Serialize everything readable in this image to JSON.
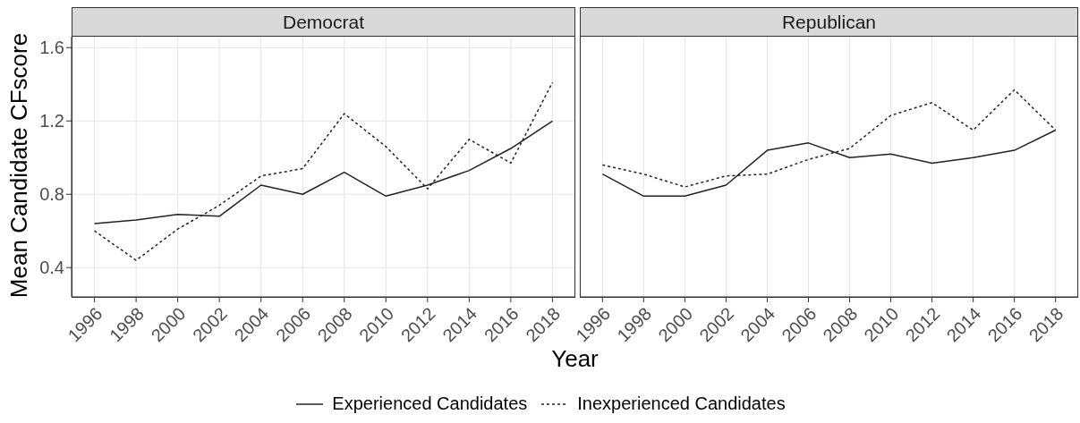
{
  "chart_data": [
    {
      "type": "line",
      "title": "Democrat",
      "xlabel": "Year",
      "ylabel": "Mean Candidate CFscore",
      "x": [
        1996,
        1998,
        2000,
        2002,
        2004,
        2006,
        2008,
        2010,
        2012,
        2014,
        2016,
        2018
      ],
      "xlim": [
        1994.9,
        2019.1
      ],
      "xticks": [
        1996,
        1998,
        2000,
        2002,
        2004,
        2006,
        2008,
        2010,
        2012,
        2014,
        2016,
        2018
      ],
      "ylim": [
        0.24,
        1.66
      ],
      "yticks": [
        0.4,
        0.8,
        1.2,
        1.6
      ],
      "grid": true,
      "legend": "bottom",
      "marker": "none",
      "series": [
        {
          "name": "Experienced Candidates",
          "color": "#222222",
          "line_style": "solid",
          "values": [
            0.64,
            0.66,
            0.69,
            0.68,
            0.85,
            0.8,
            0.92,
            0.79,
            0.85,
            0.93,
            1.05,
            1.2
          ]
        },
        {
          "name": "Inexperienced Candidates",
          "color": "#222222",
          "line_style": "dotted",
          "values": [
            0.6,
            0.44,
            0.61,
            0.74,
            0.9,
            0.94,
            1.24,
            1.06,
            0.83,
            1.1,
            0.97,
            1.41
          ]
        }
      ]
    },
    {
      "type": "line",
      "title": "Republican",
      "x": [
        1996,
        1998,
        2000,
        2002,
        2004,
        2006,
        2008,
        2010,
        2012,
        2014,
        2016,
        2018
      ],
      "xlim": [
        1994.9,
        2019.1
      ],
      "xticks": [
        1996,
        1998,
        2000,
        2002,
        2004,
        2006,
        2008,
        2010,
        2012,
        2014,
        2016,
        2018
      ],
      "ylim": [
        0.24,
        1.66
      ],
      "yticks": [
        0.4,
        0.8,
        1.2,
        1.6
      ],
      "grid": true,
      "tick_labels": "x",
      "marker": "none",
      "series": [
        {
          "color": "#222222",
          "line_style": "solid",
          "values": [
            0.91,
            0.79,
            0.79,
            0.85,
            1.04,
            1.08,
            1.0,
            1.02,
            0.97,
            1.0,
            1.04,
            1.15
          ]
        },
        {
          "color": "#222222",
          "line_style": "dotted",
          "values": [
            0.96,
            0.91,
            0.84,
            0.9,
            0.91,
            0.99,
            1.05,
            1.23,
            1.3,
            1.15,
            1.37,
            1.15
          ]
        }
      ]
    }
  ]
}
